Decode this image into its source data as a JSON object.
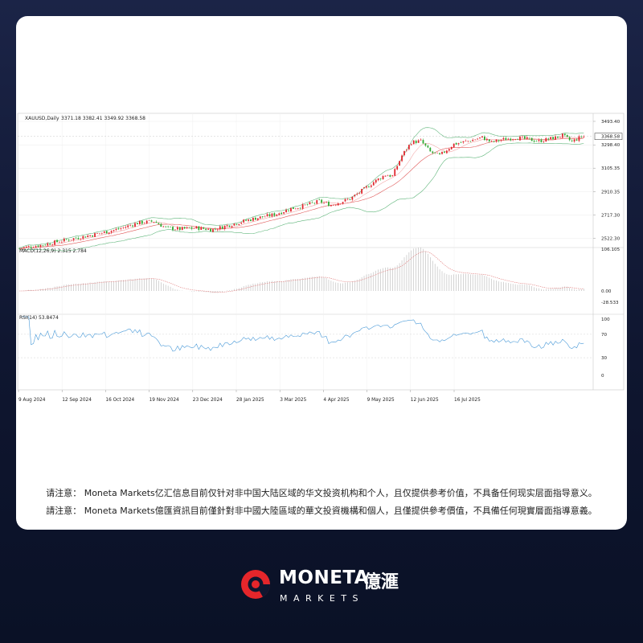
{
  "notes": {
    "simplified": "请注意： Moneta Markets亿汇信息目前仅针对非中国大陆区域的华文投资机构和个人，且仅提供参考价值，不具备任何现实层面指导意义。",
    "traditional": "請注意： Moneta Markets億匯資訊目前僅針對非中國大陸區域的華文投資機構和個人，且僅提供參考價值，不具備任何現實層面指導意義。"
  },
  "brand": {
    "name": "MONETA",
    "name_cn": "億滙",
    "sub": "MARKETS",
    "color_red": "#e5262b"
  },
  "chart_data": {
    "type": "candlestick",
    "symbol_label": "XAUUSD,Daily",
    "ohlc_label": "3371.18 3382.41 3349.92 3368.58",
    "last_price": "3368.58",
    "up_color": "#e0262d",
    "down_color": "#2ea82f",
    "ma_color": "#e05a5a",
    "band_color": "#5fb57a",
    "price_axis": {
      "ticks": [
        "3493.40",
        "3298.40",
        "3105.35",
        "2910.35",
        "2717.30",
        "2522.30"
      ],
      "values": [
        3493.4,
        3298.4,
        3105.35,
        2910.35,
        2717.3,
        2522.3
      ],
      "range": [
        2460,
        3540
      ]
    },
    "x_axis": {
      "labels": [
        "9 Aug 2024",
        "12 Sep 2024",
        "16 Oct 2024",
        "19 Nov 2024",
        "23 Dec 2024",
        "28 Jan 2025",
        "3 Mar 2025",
        "4 Apr 2025",
        "9 May 2025",
        "12 Jun 2025",
        "16 Jul 2025"
      ]
    },
    "price_anchors": [
      [
        0,
        2440
      ],
      [
        10,
        2470
      ],
      [
        20,
        2510
      ],
      [
        33,
        2560
      ],
      [
        42,
        2600
      ],
      [
        50,
        2650
      ],
      [
        57,
        2665
      ],
      [
        62,
        2610
      ],
      [
        68,
        2600
      ],
      [
        75,
        2610
      ],
      [
        82,
        2595
      ],
      [
        90,
        2640
      ],
      [
        100,
        2690
      ],
      [
        108,
        2720
      ],
      [
        115,
        2770
      ],
      [
        120,
        2790
      ],
      [
        127,
        2830
      ],
      [
        132,
        2800
      ],
      [
        140,
        2850
      ],
      [
        146,
        2930
      ],
      [
        150,
        2990
      ],
      [
        155,
        3050
      ],
      [
        158,
        3040
      ],
      [
        162,
        3210
      ],
      [
        166,
        3320
      ],
      [
        170,
        3330
      ],
      [
        174,
        3240
      ],
      [
        178,
        3210
      ],
      [
        184,
        3305
      ],
      [
        190,
        3330
      ],
      [
        196,
        3360
      ],
      [
        200,
        3320
      ],
      [
        204,
        3340
      ],
      [
        210,
        3360
      ],
      [
        215,
        3345
      ],
      [
        220,
        3330
      ],
      [
        225,
        3350
      ],
      [
        230,
        3375
      ],
      [
        234,
        3325
      ],
      [
        238,
        3368
      ]
    ],
    "macd": {
      "label": "MACD(12,26,9) 2.315 2.784",
      "ticks": [
        "106.105",
        "0.00",
        "-28.533"
      ],
      "values": [
        106.105,
        0,
        -28.533
      ]
    },
    "rsi": {
      "label": "RSI(14) 53.8474",
      "ticks": [
        "100",
        "70",
        "30",
        "0"
      ],
      "values": [
        100,
        70,
        30,
        0
      ]
    }
  }
}
